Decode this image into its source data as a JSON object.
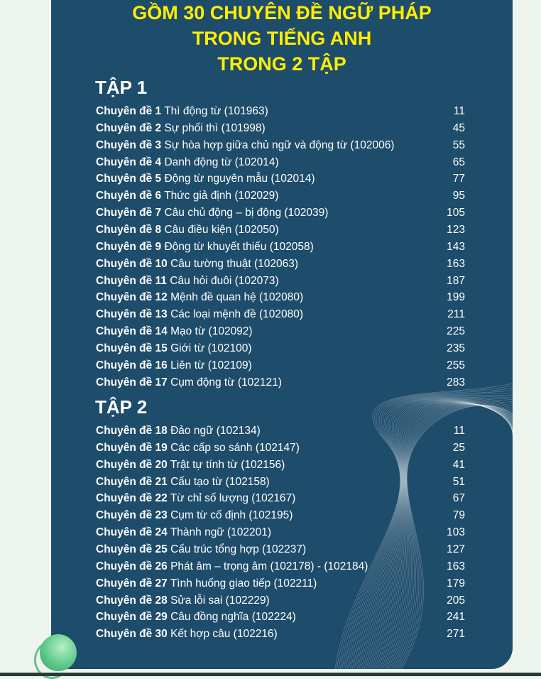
{
  "title": [
    "GỒM 30 CHUYÊN ĐỀ NGỮ PHÁP",
    "TRONG TIẾNG ANH",
    "TRONG 2 TẬP"
  ],
  "colors": {
    "panel": "#1e4c6b",
    "title": "#ffee00",
    "background": "#eef5ee"
  },
  "volumes": [
    {
      "label": "TẬP 1",
      "items": [
        {
          "prefix": "Chuyên đề 1",
          "name": "Thì động từ (101963)",
          "page": "11"
        },
        {
          "prefix": "Chuyên đề 2",
          "name": "Sự phối thì (101998)",
          "page": "45"
        },
        {
          "prefix": "Chuyên đề 3",
          "name": "Sự hòa hợp giữa chủ ngữ và động từ (102006)",
          "page": "55"
        },
        {
          "prefix": "Chuyên đề 4",
          "name": "Danh động từ (102014)",
          "page": "65"
        },
        {
          "prefix": "Chuyên đề 5",
          "name": "Động từ nguyên mẫu (102014)",
          "page": "77"
        },
        {
          "prefix": "Chuyên đề 6",
          "name": "Thức giả định (102029)",
          "page": "95"
        },
        {
          "prefix": "Chuyên đề 7",
          "name": "Câu chủ động – bị động (102039)",
          "page": "105"
        },
        {
          "prefix": "Chuyên đề 8",
          "name": "Câu điều kiện (102050)",
          "page": "123"
        },
        {
          "prefix": "Chuyên đề 9",
          "name": "Động từ khuyết thiếu (102058)",
          "page": "143"
        },
        {
          "prefix": "Chuyên đề 10",
          "name": "Câu tường thuật (102063)",
          "page": "163"
        },
        {
          "prefix": "Chuyên đề 11",
          "name": "Câu hỏi đuôi (102073)",
          "page": "187"
        },
        {
          "prefix": "Chuyên đề 12",
          "name": "Mệnh đề quan hệ (102080)",
          "page": "199"
        },
        {
          "prefix": "Chuyên đề 13",
          "name": "Các loại mệnh đề (102080)",
          "page": "211"
        },
        {
          "prefix": "Chuyên đề 14",
          "name": "Mạo từ (102092)",
          "page": "225"
        },
        {
          "prefix": "Chuyên đề 15",
          "name": "Giới từ (102100)",
          "page": "235"
        },
        {
          "prefix": "Chuyên đề 16",
          "name": "Liên từ (102109)",
          "page": "255"
        },
        {
          "prefix": "Chuyên đề 17",
          "name": "Cụm động từ (102121)",
          "page": "283"
        }
      ]
    },
    {
      "label": "TẬP 2",
      "items": [
        {
          "prefix": "Chuyên đề 18",
          "name": "Đảo ngữ (102134)",
          "page": "11"
        },
        {
          "prefix": "Chuyên đề 19",
          "name": "Các cấp so sánh (102147)",
          "page": "25"
        },
        {
          "prefix": "Chuyên đề 20",
          "name": "Trật tự tính từ (102156)",
          "page": "41"
        },
        {
          "prefix": "Chuyên đề 21",
          "name": "Cấu tạo từ (102158)",
          "page": "51"
        },
        {
          "prefix": "Chuyên đề 22",
          "name": "Từ chỉ số lượng (102167)",
          "page": "67"
        },
        {
          "prefix": "Chuyên đề 23",
          "name": "Cụm từ cố định (102195)",
          "page": "79"
        },
        {
          "prefix": "Chuyên đề 24",
          "name": "Thành ngữ (102201)",
          "page": "103"
        },
        {
          "prefix": "Chuyên đề 25",
          "name": "Cấu trúc tổng hợp (102237)",
          "page": "127"
        },
        {
          "prefix": "Chuyên đề 26",
          "name": "Phát âm – trọng âm (102178) - (102184)",
          "page": "163"
        },
        {
          "prefix": "Chuyên đề 27",
          "name": "Tình huống giao tiếp (102211)",
          "page": "179"
        },
        {
          "prefix": "Chuyên đề 28",
          "name": "Sửa lỗi sai (102229)",
          "page": "205"
        },
        {
          "prefix": "Chuyên đề 29",
          "name": "Câu đồng nghĩa (102224)",
          "page": "241"
        },
        {
          "prefix": "Chuyên đề 30",
          "name": "Kết hợp câu (102216)",
          "page": "271"
        }
      ]
    }
  ]
}
